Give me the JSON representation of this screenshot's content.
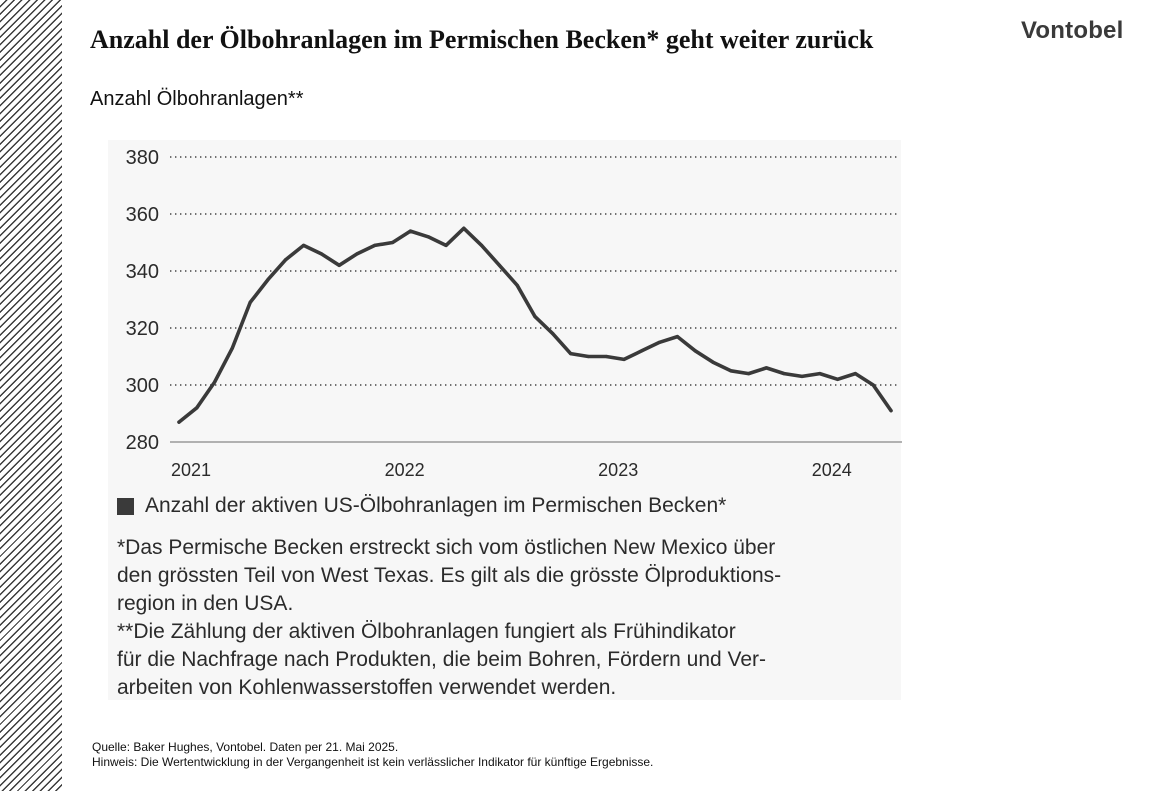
{
  "header": {
    "title": "Anzahl der Ölbohranlagen im Permischen Becken* geht weiter zurück",
    "subtitle": "Anzahl Ölbohranlagen**",
    "logo": "Vontobel"
  },
  "chart_data": {
    "type": "line",
    "title": "Anzahl der Ölbohranlagen im Permischen Becken* geht weiter zurück",
    "ylabel": "Anzahl Ölbohranlagen**",
    "xlabel": "",
    "ylim": [
      280,
      380
    ],
    "yticks": [
      380,
      360,
      340,
      320,
      300,
      280
    ],
    "xlim": [
      "2021-01",
      "2024-04"
    ],
    "xticks": [
      {
        "label": "2021",
        "date": "2021-01"
      },
      {
        "label": "2022",
        "date": "2022-01"
      },
      {
        "label": "2023",
        "date": "2023-01"
      },
      {
        "label": "2024",
        "date": "2024-01"
      }
    ],
    "grid": "horizontal dotted",
    "legend_position": "bottom",
    "series": [
      {
        "name": "Anzahl der aktiven US-Ölbohranlagen im Permischen Becken*",
        "color": "#3a3a3a",
        "points": [
          [
            "2021-01",
            287
          ],
          [
            "2021-02",
            292
          ],
          [
            "2021-03",
            301
          ],
          [
            "2021-04",
            313
          ],
          [
            "2021-05",
            329
          ],
          [
            "2021-06",
            337
          ],
          [
            "2021-07",
            344
          ],
          [
            "2021-08",
            349
          ],
          [
            "2021-09",
            346
          ],
          [
            "2021-10",
            342
          ],
          [
            "2021-11",
            346
          ],
          [
            "2021-12",
            349
          ],
          [
            "2022-01",
            350
          ],
          [
            "2022-02",
            354
          ],
          [
            "2022-03",
            352
          ],
          [
            "2022-04",
            349
          ],
          [
            "2022-05",
            355
          ],
          [
            "2022-06",
            349
          ],
          [
            "2022-07",
            342
          ],
          [
            "2022-08",
            335
          ],
          [
            "2022-09",
            324
          ],
          [
            "2022-10",
            318
          ],
          [
            "2022-11",
            311
          ],
          [
            "2022-12",
            310
          ],
          [
            "2023-01",
            310
          ],
          [
            "2023-02",
            309
          ],
          [
            "2023-03",
            312
          ],
          [
            "2023-04",
            315
          ],
          [
            "2023-05",
            317
          ],
          [
            "2023-06",
            312
          ],
          [
            "2023-07",
            308
          ],
          [
            "2023-08",
            305
          ],
          [
            "2023-09",
            304
          ],
          [
            "2023-10",
            306
          ],
          [
            "2023-11",
            304
          ],
          [
            "2023-12",
            303
          ],
          [
            "2024-01",
            304
          ],
          [
            "2024-02",
            302
          ],
          [
            "2024-03",
            304
          ],
          [
            "2024-04",
            300
          ],
          [
            "2024-05",
            291
          ]
        ]
      }
    ]
  },
  "legend": {
    "label": "Anzahl der aktiven US-Ölbohranlagen im Permischen Becken*"
  },
  "notes": {
    "note1_line1": "*Das Permische Becken erstreckt sich vom östlichen New Mexico über",
    "note1_line2": "den grössten Teil von West Texas. Es gilt als die grösste Ölproduktions-",
    "note1_line3": "region in den USA.",
    "note2_line1": "**Die Zählung der aktiven Ölbohranlagen fungiert als Frühindikator",
    "note2_line2": "für die Nachfrage nach Produkten, die beim Bohren, Fördern und Ver-",
    "note2_line3": "arbeiten von Kohlenwasserstoffen verwendet werden."
  },
  "footer": {
    "source": "Quelle: Baker Hughes, Vontobel. Daten per 21. Mai 2025.",
    "disclaimer": "Hinweis: Die Wertentwicklung in der Vergangenheit ist kein verlässlicher Indikator für künftige Ergebnisse."
  }
}
